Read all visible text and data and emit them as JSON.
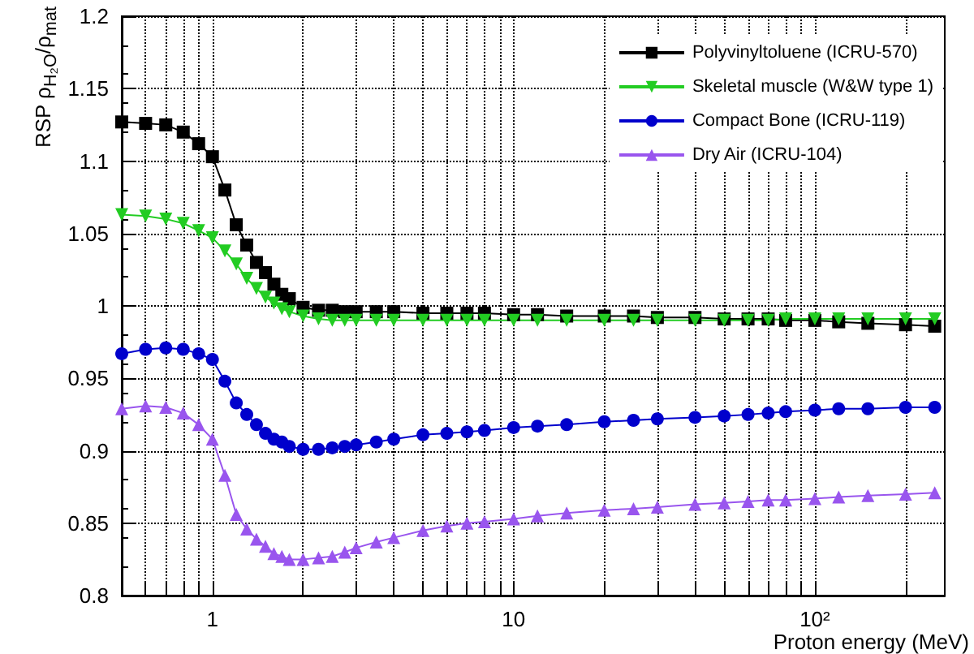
{
  "chart_data": {
    "type": "line",
    "xlabel": "Proton energy (MeV)",
    "ylabel": "RSP ρ$_{H₂O}$/ρ$_{mat}$",
    "x": [
      0.5,
      0.6,
      0.7,
      0.8,
      0.9,
      1.0,
      1.1,
      1.2,
      1.3,
      1.4,
      1.5,
      1.6,
      1.7,
      1.8,
      2,
      2.25,
      2.5,
      2.75,
      3,
      3.5,
      4,
      5,
      6,
      7,
      8,
      10,
      12,
      15,
      20,
      25,
      30,
      40,
      50,
      60,
      70,
      80,
      100,
      120,
      150,
      200,
      250
    ],
    "series": [
      {
        "name": "Polyvinyltoluene (ICRU-570)",
        "color": "#000000",
        "marker": "square",
        "values": [
          1.127,
          1.126,
          1.125,
          1.12,
          1.112,
          1.103,
          1.08,
          1.056,
          1.042,
          1.03,
          1.023,
          1.015,
          1.008,
          1.005,
          0.999,
          0.997,
          0.997,
          0.996,
          0.996,
          0.996,
          0.996,
          0.995,
          0.995,
          0.995,
          0.995,
          0.994,
          0.994,
          0.993,
          0.993,
          0.993,
          0.992,
          0.992,
          0.991,
          0.991,
          0.991,
          0.99,
          0.99,
          0.989,
          0.988,
          0.987,
          0.986
        ]
      },
      {
        "name": "Skeletal muscle (W&W type 1)",
        "color": "#22cc22",
        "marker": "triangle-down",
        "values": [
          1.063,
          1.062,
          1.06,
          1.057,
          1.052,
          1.047,
          1.038,
          1.029,
          1.019,
          1.012,
          1.006,
          1.002,
          0.998,
          0.996,
          0.993,
          0.991,
          0.99,
          0.99,
          0.99,
          0.99,
          0.99,
          0.99,
          0.99,
          0.99,
          0.99,
          0.99,
          0.99,
          0.99,
          0.99,
          0.99,
          0.99,
          0.99,
          0.99,
          0.99,
          0.99,
          0.991,
          0.991,
          0.991,
          0.991,
          0.991,
          0.991
        ]
      },
      {
        "name": "Compact Bone (ICRU-119)",
        "color": "#0000cc",
        "marker": "circle",
        "values": [
          0.967,
          0.97,
          0.971,
          0.97,
          0.967,
          0.963,
          0.948,
          0.933,
          0.925,
          0.918,
          0.912,
          0.908,
          0.906,
          0.903,
          0.901,
          0.901,
          0.902,
          0.903,
          0.904,
          0.906,
          0.908,
          0.911,
          0.912,
          0.913,
          0.914,
          0.916,
          0.917,
          0.918,
          0.92,
          0.921,
          0.922,
          0.923,
          0.924,
          0.925,
          0.926,
          0.927,
          0.928,
          0.929,
          0.929,
          0.93,
          0.93
        ]
      },
      {
        "name": "Dry Air (ICRU-104)",
        "color": "#9955ee",
        "marker": "triangle",
        "values": [
          0.929,
          0.931,
          0.93,
          0.926,
          0.918,
          0.908,
          0.883,
          0.856,
          0.846,
          0.839,
          0.834,
          0.829,
          0.827,
          0.825,
          0.825,
          0.826,
          0.827,
          0.83,
          0.833,
          0.837,
          0.84,
          0.845,
          0.848,
          0.85,
          0.851,
          0.853,
          0.855,
          0.857,
          0.859,
          0.86,
          0.861,
          0.863,
          0.864,
          0.865,
          0.866,
          0.866,
          0.867,
          0.868,
          0.869,
          0.87,
          0.871
        ]
      }
    ],
    "log": "x",
    "xlim": [
      0.5,
      270
    ],
    "ylim": [
      0.8,
      1.2
    ],
    "xticks": [
      {
        "value": 0.6,
        "label": null
      },
      {
        "value": 0.7,
        "label": null
      },
      {
        "value": 0.8,
        "label": null
      },
      {
        "value": 0.9,
        "label": null
      },
      1,
      {
        "value": 2,
        "label": null
      },
      {
        "value": 3,
        "label": null
      },
      {
        "value": 4,
        "label": null
      },
      {
        "value": 5,
        "label": null
      },
      {
        "value": 6,
        "label": null
      },
      {
        "value": 7,
        "label": null
      },
      {
        "value": 8,
        "label": null
      },
      {
        "value": 9,
        "label": null
      },
      10,
      {
        "value": 20,
        "label": null
      },
      {
        "value": 30,
        "label": null
      },
      {
        "value": 40,
        "label": null
      },
      {
        "value": 50,
        "label": null
      },
      {
        "value": 60,
        "label": null
      },
      {
        "value": 70,
        "label": null
      },
      {
        "value": 80,
        "label": null
      },
      {
        "value": 90,
        "label": null
      },
      {
        "value": 100,
        "label": "10²"
      },
      {
        "value": 200,
        "label": null
      }
    ],
    "yticks": [
      0.8,
      0.85,
      0.9,
      0.95,
      1,
      1.05,
      1.1,
      1.15,
      1.2
    ],
    "grid": true,
    "legend": "top right",
    "line_style": "solid"
  }
}
